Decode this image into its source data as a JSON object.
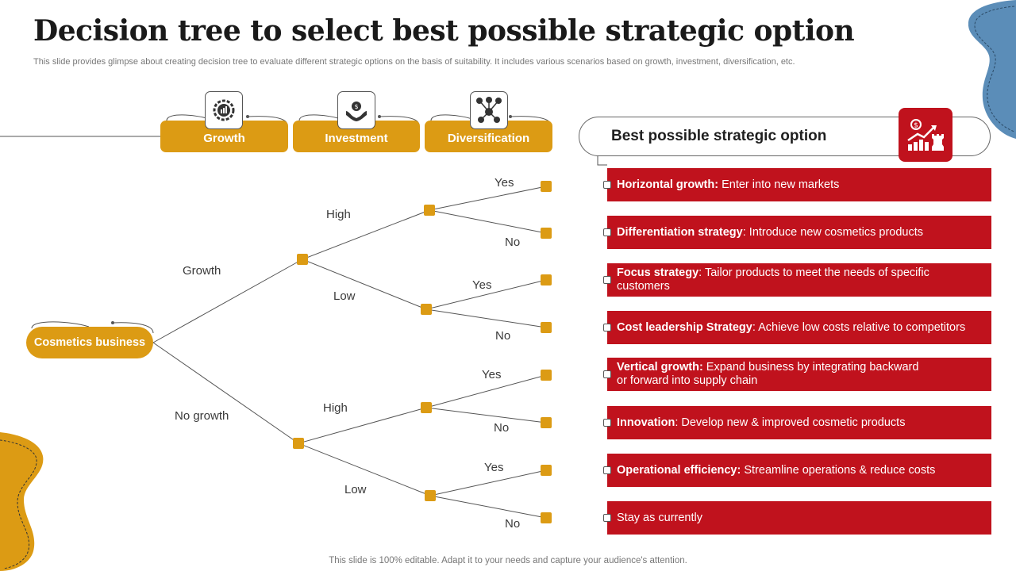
{
  "title": "Decision tree to select best possible strategic option",
  "subtitle": "This slide provides glimpse about creating decision tree to evaluate different strategic options on the basis of suitability. It includes various scenarios based on growth, investment, diversification, etc.",
  "footer": "This slide is 100% editable. Adapt it to your needs and capture your audience's attention.",
  "colors": {
    "gold": "#dc9b14",
    "red": "#c0121d",
    "blue": "#5b8db8",
    "text": "#1a1a1a"
  },
  "headers": [
    {
      "label": "Growth",
      "icon": "gear-chart-icon"
    },
    {
      "label": "Investment",
      "icon": "money-hands-icon"
    },
    {
      "label": "Diversification",
      "icon": "network-icon"
    }
  ],
  "tree": {
    "root": "Cosmetics business",
    "level1": [
      "Growth",
      "No growth"
    ],
    "level2": [
      "High",
      "Low",
      "High",
      "Low"
    ],
    "level3": [
      "Yes",
      "No",
      "Yes",
      "No",
      "Yes",
      "No",
      "Yes",
      "No"
    ]
  },
  "best_option": {
    "title": "Best possible strategic option",
    "icon": "strategy-chart-icon",
    "items": [
      {
        "bold": "Horizontal growth:",
        "text": " Enter into new markets"
      },
      {
        "bold": "Differentiation strategy",
        "text": ": Introduce new cosmetics products"
      },
      {
        "bold": "Focus strategy",
        "text": ": Tailor products to meet the needs of specific customers"
      },
      {
        "bold": "Cost leadership Strategy",
        "text": ": Achieve low costs relative to competitors"
      },
      {
        "bold": "Vertical growth:",
        "text": " Expand business by integrating backward or forward into supply chain"
      },
      {
        "bold": "Innovation",
        "text": ": Develop new & improved cosmetic products"
      },
      {
        "bold": "Operational efficiency:",
        "text": " Streamline operations & reduce costs"
      },
      {
        "bold": "",
        "text": "Stay as currently"
      }
    ]
  }
}
